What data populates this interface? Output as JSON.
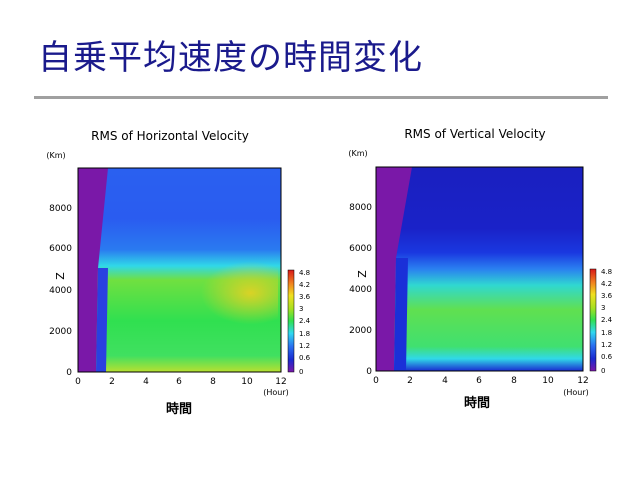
{
  "slide": {
    "title": "自乗平均速度の時間変化"
  },
  "panels": [
    {
      "title": "RMS of Horizontal Velocity",
      "y_unit": "(Km)",
      "y_label": "Z",
      "x_unit": "(Hour)",
      "x_label": "時間",
      "y_ticks": [
        "0",
        "2000",
        "4000",
        "6000",
        "8000"
      ],
      "x_ticks": [
        "0",
        "2",
        "4",
        "6",
        "8",
        "10",
        "12"
      ],
      "colorbar_ticks": [
        "4.8",
        "4.2",
        "3.6",
        "3",
        "2.4",
        "1.8",
        "1.2",
        "0.6",
        "0"
      ]
    },
    {
      "title": "RMS of Vertical Velocity",
      "y_unit": "(Km)",
      "y_label": "Z",
      "x_unit": "(Hour)",
      "x_label": "時間",
      "y_ticks": [
        "0",
        "2000",
        "4000",
        "6000",
        "8000"
      ],
      "x_ticks": [
        "0",
        "2",
        "4",
        "6",
        "8",
        "10",
        "12"
      ],
      "colorbar_ticks": [
        "4.8",
        "4.2",
        "3.6",
        "3",
        "2.4",
        "1.8",
        "1.2",
        "0.6",
        "0"
      ]
    }
  ],
  "colors": {
    "title_text": "#1a1a8c",
    "rule": "#a0a0a0",
    "purple": "#7a18a8",
    "deep_blue": "#1a2ad0",
    "blue": "#2858f0",
    "cyan": "#30d8f0",
    "green": "#30e050",
    "yellow_green": "#b8e020",
    "yellow": "#f0e020"
  }
}
